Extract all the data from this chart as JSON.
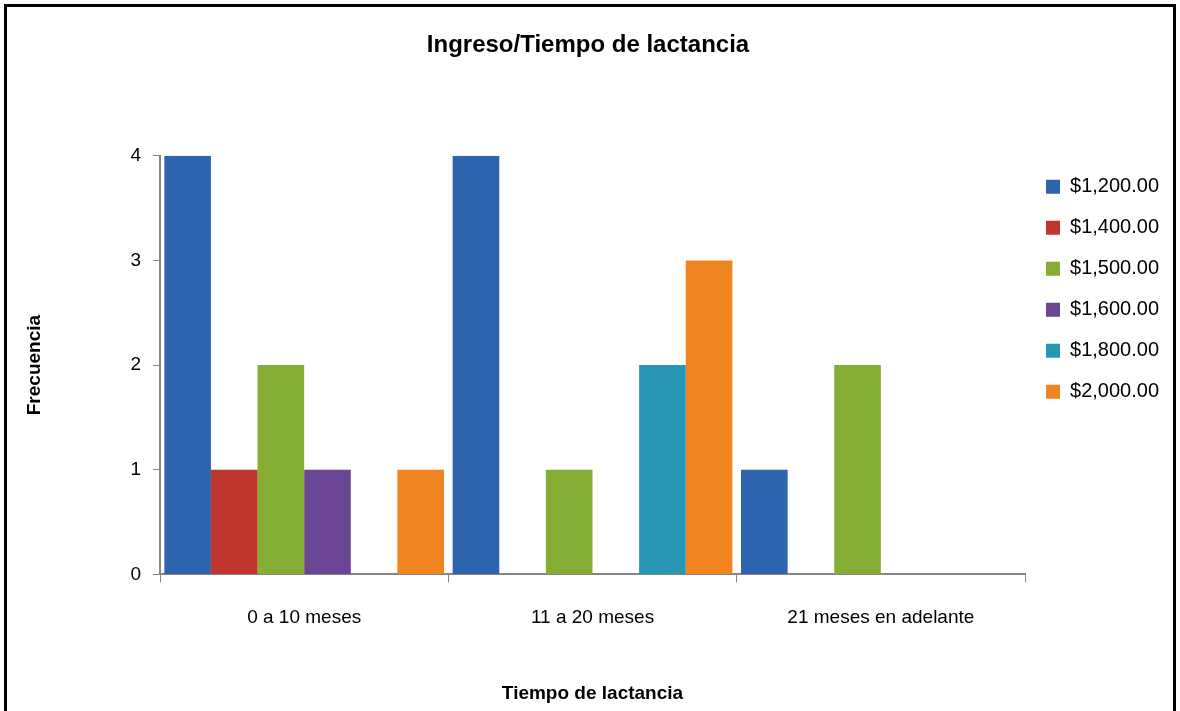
{
  "chart_data": {
    "type": "bar",
    "title": "Ingreso/Tiempo de lactancia",
    "xlabel": "Tiempo de lactancia",
    "ylabel": "Frecuencia",
    "categories": [
      "0 a 10 meses",
      "11 a 20 meses",
      "21 meses en adelante"
    ],
    "series": [
      {
        "name": "$1,200.00",
        "color": "#2e64ad",
        "values": [
          4,
          4,
          1
        ]
      },
      {
        "name": "$1,400.00",
        "color": "#c0352e",
        "values": [
          1,
          0,
          0
        ]
      },
      {
        "name": "$1,500.00",
        "color": "#86ad33",
        "values": [
          2,
          1,
          2
        ]
      },
      {
        "name": "$1,600.00",
        "color": "#6a4695",
        "values": [
          1,
          0,
          0
        ]
      },
      {
        "name": "$1,800.00",
        "color": "#2896b5",
        "values": [
          0,
          2,
          0
        ]
      },
      {
        "name": "$2,000.00",
        "color": "#ef8420",
        "values": [
          1,
          3,
          0
        ]
      }
    ],
    "ylim": [
      0,
      4
    ],
    "yticks": [
      0,
      1,
      2,
      3,
      4
    ],
    "legend": "right"
  }
}
